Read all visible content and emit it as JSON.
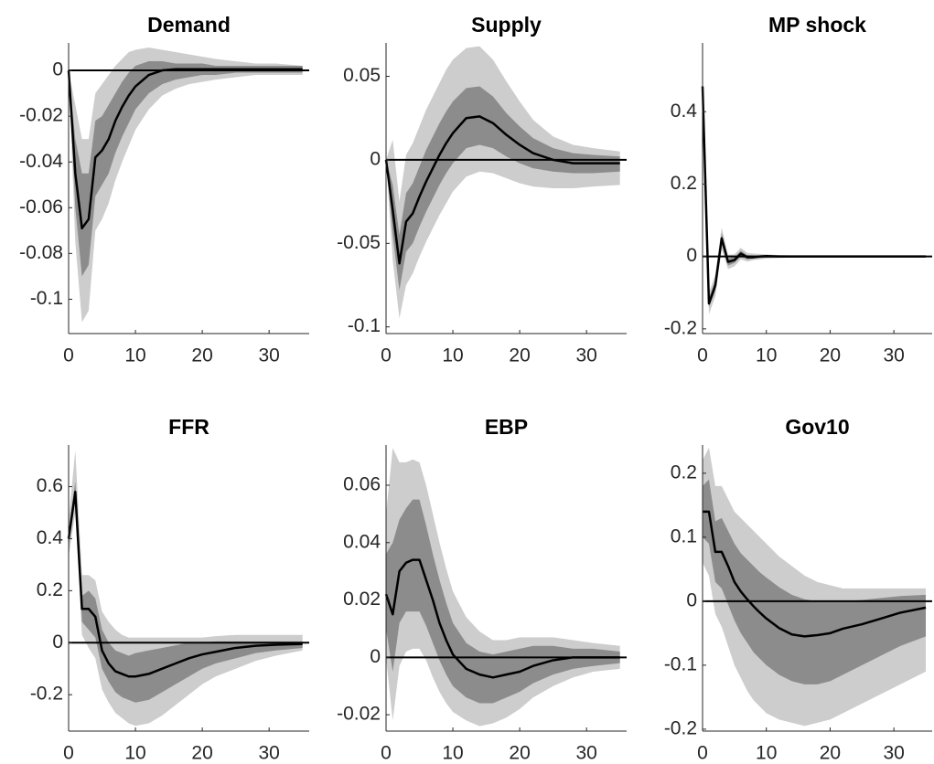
{
  "chart_data": [
    {
      "type": "line",
      "title": "Demand",
      "x": [
        0,
        1,
        2,
        3,
        4,
        5,
        6,
        7,
        8,
        9,
        10,
        12,
        14,
        16,
        18,
        20,
        22,
        25,
        28,
        31,
        35
      ],
      "xlim": [
        0,
        36
      ],
      "xticks": [
        0,
        10,
        20,
        30
      ],
      "ylim": [
        -0.115,
        0.012
      ],
      "yticks": [
        -0.1,
        -0.08,
        -0.06,
        -0.04,
        -0.02,
        0
      ],
      "bands": [
        {
          "color": "#cdcdcd",
          "lower": [
            0,
            -0.075,
            -0.11,
            -0.105,
            -0.07,
            -0.065,
            -0.058,
            -0.048,
            -0.04,
            -0.033,
            -0.026,
            -0.017,
            -0.011,
            -0.008,
            -0.006,
            -0.005,
            -0.004,
            -0.003,
            -0.002,
            -0.002,
            -0.002
          ],
          "upper": [
            0,
            -0.015,
            -0.03,
            -0.03,
            -0.01,
            -0.006,
            -0.002,
            0.002,
            0.005,
            0.008,
            0.009,
            0.01,
            0.009,
            0.008,
            0.007,
            0.006,
            0.005,
            0.004,
            0.003,
            0.003,
            0.002
          ]
        },
        {
          "color": "#8c8c8c",
          "lower": [
            0,
            -0.06,
            -0.09,
            -0.085,
            -0.055,
            -0.05,
            -0.045,
            -0.036,
            -0.029,
            -0.023,
            -0.017,
            -0.01,
            -0.006,
            -0.004,
            -0.003,
            -0.002,
            -0.002,
            -0.001,
            -0.001,
            -0.001,
            -0.001
          ],
          "upper": [
            0,
            -0.03,
            -0.045,
            -0.045,
            -0.022,
            -0.02,
            -0.015,
            -0.01,
            -0.005,
            -0.001,
            0.002,
            0.004,
            0.004,
            0.003,
            0.003,
            0.003,
            0.002,
            0.002,
            0.002,
            0.002,
            0.002
          ]
        }
      ],
      "series": [
        {
          "color": "#000000",
          "values": [
            0,
            -0.045,
            -0.069,
            -0.065,
            -0.038,
            -0.035,
            -0.03,
            -0.022,
            -0.016,
            -0.011,
            -0.007,
            -0.002,
            0,
            0.0005,
            0.0005,
            0.0005,
            0.0005,
            0.0005,
            0.0005,
            0.0005,
            0.0005
          ]
        }
      ]
    },
    {
      "type": "line",
      "title": "Supply",
      "x": [
        0,
        1,
        2,
        3,
        4,
        5,
        6,
        7,
        8,
        9,
        10,
        12,
        14,
        16,
        18,
        20,
        22,
        25,
        28,
        31,
        35
      ],
      "xlim": [
        0,
        36
      ],
      "xticks": [
        0,
        10,
        20,
        30
      ],
      "ylim": [
        -0.104,
        0.07
      ],
      "yticks": [
        -0.1,
        -0.05,
        0,
        0.05
      ],
      "bands": [
        {
          "color": "#cdcdcd",
          "lower": [
            0,
            -0.06,
            -0.095,
            -0.075,
            -0.068,
            -0.058,
            -0.049,
            -0.041,
            -0.033,
            -0.026,
            -0.019,
            -0.01,
            -0.007,
            -0.008,
            -0.011,
            -0.014,
            -0.016,
            -0.017,
            -0.017,
            -0.016,
            -0.015
          ],
          "upper": [
            0,
            0.012,
            -0.025,
            0.003,
            0.01,
            0.02,
            0.03,
            0.038,
            0.046,
            0.054,
            0.06,
            0.067,
            0.068,
            0.06,
            0.047,
            0.035,
            0.024,
            0.014,
            0.009,
            0.007,
            0.005
          ]
        },
        {
          "color": "#8c8c8c",
          "lower": [
            0,
            -0.045,
            -0.078,
            -0.055,
            -0.05,
            -0.04,
            -0.031,
            -0.023,
            -0.015,
            -0.008,
            -0.002,
            0.007,
            0.009,
            0.007,
            0.002,
            -0.002,
            -0.005,
            -0.007,
            -0.008,
            -0.008,
            -0.007
          ],
          "upper": [
            0,
            -0.015,
            -0.045,
            -0.02,
            -0.014,
            -0.004,
            0.006,
            0.014,
            0.022,
            0.029,
            0.035,
            0.043,
            0.044,
            0.038,
            0.028,
            0.02,
            0.013,
            0.007,
            0.004,
            0.003,
            0.002
          ]
        }
      ],
      "series": [
        {
          "color": "#000000",
          "values": [
            0,
            -0.03,
            -0.062,
            -0.037,
            -0.032,
            -0.022,
            -0.013,
            -0.005,
            0.003,
            0.01,
            0.016,
            0.025,
            0.026,
            0.022,
            0.015,
            0.009,
            0.004,
            0,
            -0.002,
            -0.002,
            -0.002
          ]
        }
      ]
    },
    {
      "type": "line",
      "title": "MP shock",
      "x": [
        0,
        1,
        2,
        3,
        4,
        5,
        6,
        7,
        8,
        9,
        10,
        12,
        14,
        16,
        18,
        20,
        22,
        25,
        28,
        31,
        35
      ],
      "xlim": [
        0,
        36
      ],
      "xticks": [
        0,
        10,
        20,
        30
      ],
      "ylim": [
        -0.213,
        0.59
      ],
      "yticks": [
        -0.2,
        0,
        0.2,
        0.4
      ],
      "bands": [
        {
          "color": "#cdcdcd",
          "lower": [
            0.47,
            -0.16,
            -0.11,
            0.02,
            -0.035,
            -0.027,
            -0.008,
            -0.014,
            -0.01,
            -0.008,
            -0.006,
            -0.004,
            -0.003,
            -0.002,
            -0.001,
            -0.001,
            -0.001,
            -0.001,
            -0.001,
            -0.001,
            -0.001
          ],
          "upper": [
            0.47,
            -0.1,
            -0.05,
            0.08,
            0.005,
            0.006,
            0.024,
            0.01,
            0.008,
            0.007,
            0.006,
            0.004,
            0.003,
            0.002,
            0.001,
            0.001,
            0.001,
            0.001,
            0.001,
            0.001,
            0.001
          ]
        },
        {
          "color": "#8c8c8c",
          "lower": [
            0.47,
            -0.14,
            -0.095,
            0.035,
            -0.025,
            -0.018,
            0,
            -0.008,
            -0.006,
            -0.004,
            -0.003,
            -0.002,
            -0.001,
            -0.001,
            -0.001,
            -0.001,
            -0.001,
            -0.001,
            -0.001,
            -0.001,
            -0.001
          ],
          "upper": [
            0.47,
            -0.115,
            -0.065,
            0.065,
            -0.005,
            -0.002,
            0.016,
            0.004,
            0.003,
            0.003,
            0.003,
            0.002,
            0.001,
            0.001,
            0.001,
            0.001,
            0.001,
            0.001,
            0.001,
            0.001,
            0.001
          ]
        }
      ],
      "series": [
        {
          "color": "#000000",
          "values": [
            0.47,
            -0.13,
            -0.08,
            0.05,
            -0.015,
            -0.01,
            0.008,
            -0.002,
            -0.002,
            0,
            0.001,
            0,
            0,
            0,
            0,
            0,
            0,
            0,
            0,
            0,
            0
          ]
        }
      ]
    },
    {
      "type": "line",
      "title": "FFR",
      "x": [
        0,
        1,
        2,
        3,
        4,
        5,
        6,
        7,
        8,
        9,
        10,
        12,
        14,
        16,
        18,
        20,
        22,
        25,
        28,
        31,
        35
      ],
      "xlim": [
        0,
        36
      ],
      "xticks": [
        0,
        10,
        20,
        30
      ],
      "ylim": [
        -0.34,
        0.76
      ],
      "yticks": [
        -0.2,
        0,
        0.2,
        0.4,
        0.6
      ],
      "bands": [
        {
          "color": "#cdcdcd",
          "lower": [
            0.33,
            0.5,
            0.03,
            -0.02,
            -0.06,
            -0.18,
            -0.23,
            -0.27,
            -0.29,
            -0.31,
            -0.32,
            -0.31,
            -0.28,
            -0.24,
            -0.2,
            -0.16,
            -0.13,
            -0.1,
            -0.07,
            -0.05,
            -0.03
          ],
          "upper": [
            0.47,
            0.74,
            0.26,
            0.26,
            0.24,
            0.12,
            0.08,
            0.05,
            0.03,
            0.02,
            0.02,
            0.02,
            0.02,
            0.02,
            0.02,
            0.02,
            0.025,
            0.03,
            0.03,
            0.03,
            0.03
          ]
        },
        {
          "color": "#8c8c8c",
          "lower": [
            0.37,
            0.55,
            0.08,
            0.05,
            0.02,
            -0.1,
            -0.15,
            -0.19,
            -0.21,
            -0.22,
            -0.23,
            -0.22,
            -0.19,
            -0.16,
            -0.13,
            -0.1,
            -0.08,
            -0.06,
            -0.04,
            -0.03,
            -0.02
          ],
          "upper": [
            0.43,
            0.62,
            0.18,
            0.2,
            0.17,
            0.05,
            0,
            -0.03,
            -0.04,
            -0.05,
            -0.04,
            -0.03,
            -0.02,
            -0.01,
            0,
            0,
            0.005,
            0.005,
            0.005,
            0.005,
            0.005
          ]
        }
      ],
      "series": [
        {
          "color": "#000000",
          "values": [
            0.4,
            0.58,
            0.13,
            0.13,
            0.1,
            -0.03,
            -0.08,
            -0.11,
            -0.12,
            -0.13,
            -0.13,
            -0.12,
            -0.1,
            -0.08,
            -0.06,
            -0.045,
            -0.035,
            -0.02,
            -0.012,
            -0.008,
            -0.005
          ]
        }
      ]
    },
    {
      "type": "line",
      "title": "EBP",
      "x": [
        0,
        1,
        2,
        3,
        4,
        5,
        6,
        7,
        8,
        9,
        10,
        12,
        14,
        16,
        18,
        20,
        22,
        25,
        28,
        31,
        35
      ],
      "xlim": [
        0,
        36
      ],
      "xticks": [
        0,
        10,
        20,
        30
      ],
      "ylim": [
        -0.0257,
        0.074
      ],
      "yticks": [
        -0.02,
        0,
        0.02,
        0.04,
        0.06
      ],
      "bands": [
        {
          "color": "#cdcdcd",
          "lower": [
            0,
            -0.022,
            -0.003,
            0.002,
            0.003,
            0.003,
            -0.001,
            -0.007,
            -0.012,
            -0.016,
            -0.019,
            -0.022,
            -0.024,
            -0.023,
            -0.021,
            -0.018,
            -0.014,
            -0.01,
            -0.007,
            -0.005,
            -0.004
          ],
          "upper": [
            0.05,
            0.073,
            0.068,
            0.068,
            0.069,
            0.068,
            0.06,
            0.05,
            0.04,
            0.031,
            0.023,
            0.014,
            0.009,
            0.006,
            0.006,
            0.007,
            0.007,
            0.007,
            0.006,
            0.005,
            0.004
          ]
        },
        {
          "color": "#8c8c8c",
          "lower": [
            0.01,
            -0.005,
            0.012,
            0.016,
            0.016,
            0.016,
            0.011,
            0.005,
            -0.001,
            -0.006,
            -0.01,
            -0.014,
            -0.016,
            -0.016,
            -0.014,
            -0.012,
            -0.009,
            -0.006,
            -0.004,
            -0.003,
            -0.002
          ],
          "upper": [
            0.036,
            0.04,
            0.048,
            0.052,
            0.055,
            0.055,
            0.046,
            0.036,
            0.027,
            0.019,
            0.012,
            0.005,
            0.002,
            0.001,
            0.002,
            0.003,
            0.004,
            0.004,
            0.003,
            0.003,
            0.002
          ]
        }
      ],
      "series": [
        {
          "color": "#000000",
          "values": [
            0.022,
            0.015,
            0.03,
            0.033,
            0.034,
            0.034,
            0.027,
            0.02,
            0.012,
            0.006,
            0.001,
            -0.004,
            -0.006,
            -0.007,
            -0.006,
            -0.005,
            -0.003,
            -0.001,
            0,
            0,
            0
          ]
        }
      ]
    },
    {
      "type": "line",
      "title": "Gov10",
      "x": [
        0,
        1,
        2,
        3,
        4,
        5,
        6,
        7,
        8,
        9,
        10,
        12,
        14,
        16,
        18,
        20,
        22,
        25,
        28,
        31,
        35
      ],
      "xlim": [
        0,
        36
      ],
      "xticks": [
        0,
        10,
        20,
        30
      ],
      "ylim": [
        -0.203,
        0.244
      ],
      "yticks": [
        -0.2,
        -0.1,
        0,
        0.1,
        0.2
      ],
      "bands": [
        {
          "color": "#cdcdcd",
          "lower": [
            0.06,
            0.04,
            -0.02,
            -0.04,
            -0.07,
            -0.1,
            -0.12,
            -0.14,
            -0.155,
            -0.165,
            -0.175,
            -0.185,
            -0.19,
            -0.195,
            -0.19,
            -0.185,
            -0.175,
            -0.16,
            -0.145,
            -0.13,
            -0.11
          ],
          "upper": [
            0.22,
            0.24,
            0.18,
            0.18,
            0.16,
            0.14,
            0.13,
            0.12,
            0.11,
            0.1,
            0.09,
            0.07,
            0.055,
            0.04,
            0.03,
            0.025,
            0.02,
            0.02,
            0.02,
            0.02,
            0.02
          ]
        },
        {
          "color": "#8c8c8c",
          "lower": [
            0.1,
            0.09,
            0.03,
            0.02,
            -0.005,
            -0.03,
            -0.05,
            -0.065,
            -0.08,
            -0.09,
            -0.1,
            -0.115,
            -0.125,
            -0.13,
            -0.13,
            -0.125,
            -0.115,
            -0.1,
            -0.085,
            -0.07,
            -0.055
          ],
          "upper": [
            0.18,
            0.19,
            0.125,
            0.13,
            0.11,
            0.09,
            0.075,
            0.065,
            0.055,
            0.045,
            0.037,
            0.022,
            0.01,
            0.003,
            0,
            0,
            0,
            0.002,
            0.005,
            0.008,
            0.01
          ]
        }
      ],
      "series": [
        {
          "color": "#000000",
          "values": [
            0.14,
            0.14,
            0.077,
            0.077,
            0.055,
            0.03,
            0.015,
            0.003,
            -0.008,
            -0.018,
            -0.027,
            -0.042,
            -0.052,
            -0.055,
            -0.053,
            -0.05,
            -0.043,
            -0.036,
            -0.027,
            -0.018,
            -0.01
          ]
        }
      ]
    }
  ]
}
